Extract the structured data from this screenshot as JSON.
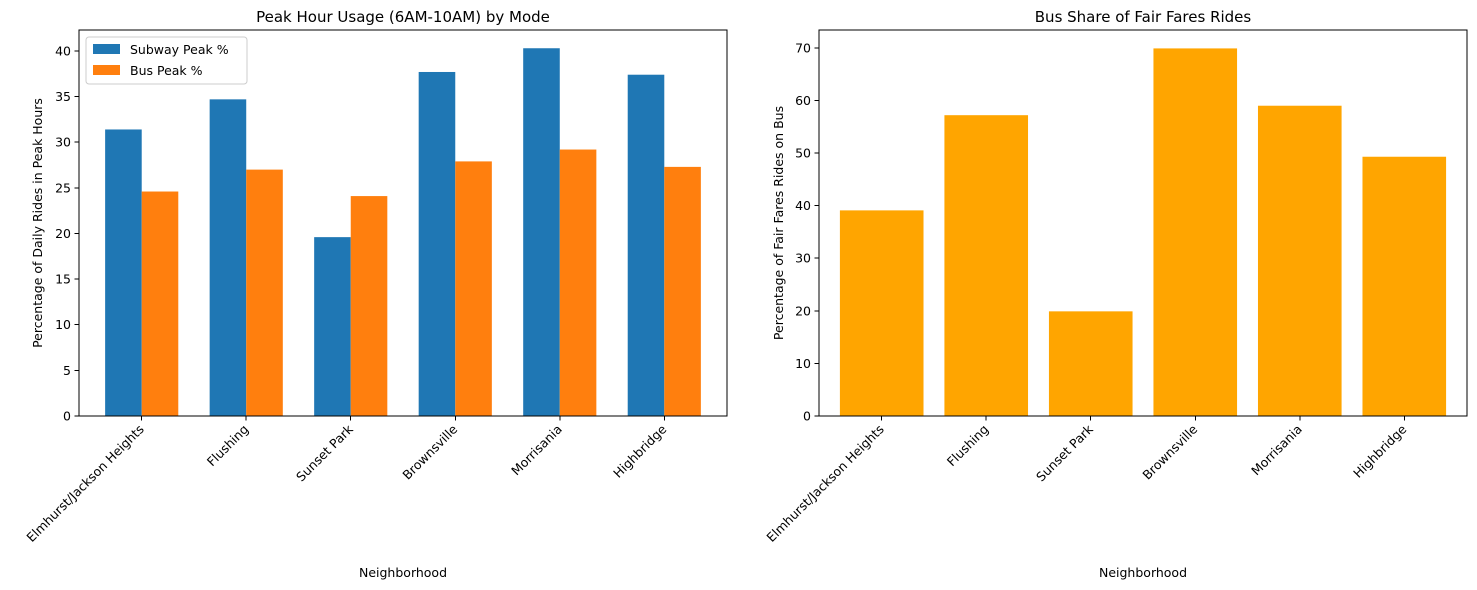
{
  "chart_data": [
    {
      "type": "bar",
      "title": "Peak Hour Usage (6AM-10AM) by Mode",
      "xlabel": "Neighborhood",
      "ylabel": "Percentage of Daily Rides in Peak Hours",
      "categories": [
        "Elmhurst/Jackson Heights",
        "Flushing",
        "Sunset Park",
        "Brownsville",
        "Morrisania",
        "Highbridge"
      ],
      "series": [
        {
          "name": "Subway Peak %",
          "color": "#1f77b4",
          "values": [
            31.4,
            34.7,
            19.6,
            37.7,
            40.3,
            37.4
          ]
        },
        {
          "name": "Bus Peak %",
          "color": "#ff7f0e",
          "values": [
            24.6,
            27.0,
            24.1,
            27.9,
            29.2,
            27.3
          ]
        }
      ],
      "ylim": [
        0,
        42.3
      ],
      "yticks": [
        0,
        5,
        10,
        15,
        20,
        25,
        30,
        35,
        40
      ],
      "legend": "top-left",
      "grid": false
    },
    {
      "type": "bar",
      "title": "Bus Share of Fair Fares Rides",
      "xlabel": "Neighborhood",
      "ylabel": "Percentage of Fair Fares Rides on Bus",
      "categories": [
        "Elmhurst/Jackson Heights",
        "Flushing",
        "Sunset Park",
        "Brownsville",
        "Morrisania",
        "Highbridge"
      ],
      "series": [
        {
          "color": "#ffa500",
          "values": [
            39.1,
            57.2,
            19.9,
            69.9,
            59.0,
            49.3
          ]
        }
      ],
      "ylim": [
        0,
        73.4
      ],
      "yticks": [
        0,
        10,
        20,
        30,
        40,
        50,
        60,
        70
      ],
      "legend": "none",
      "grid": false
    }
  ]
}
